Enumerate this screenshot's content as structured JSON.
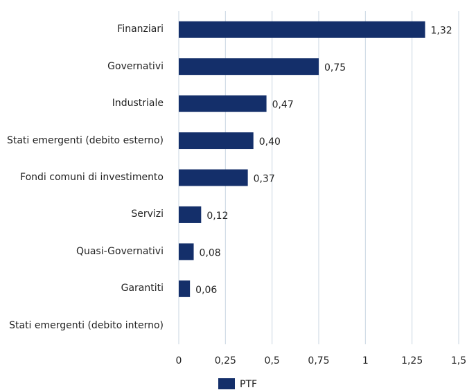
{
  "chart_data": {
    "type": "bar",
    "orientation": "horizontal",
    "categories": [
      "Finanziari",
      "Governativi",
      "Industriale",
      "Stati emergenti (debito esterno)",
      "Fondi comuni di investimento",
      "Servizi",
      "Quasi-Governativi",
      "Garantiti",
      "Stati emergenti (debito interno)"
    ],
    "series": [
      {
        "name": "PTF",
        "color": "#142f6a",
        "values": [
          1.32,
          0.75,
          0.47,
          0.4,
          0.37,
          0.12,
          0.08,
          0.06,
          null
        ],
        "value_labels": [
          "1,32",
          "0,75",
          "0,47",
          "0,40",
          "0,37",
          "0,12",
          "0,08",
          "0,06",
          null
        ]
      }
    ],
    "xlim": [
      0,
      1.5
    ],
    "xticks": [
      0,
      {
        "value": 0.25,
        "label": "0,25"
      },
      {
        "value": 0.5,
        "label": "0,5"
      },
      {
        "value": 0.75,
        "label": "0,75"
      },
      1,
      {
        "value": 1.25,
        "label": "1,25"
      },
      {
        "value": 1.5,
        "label": "1,5"
      }
    ],
    "grid": true,
    "legend": "bottom"
  }
}
